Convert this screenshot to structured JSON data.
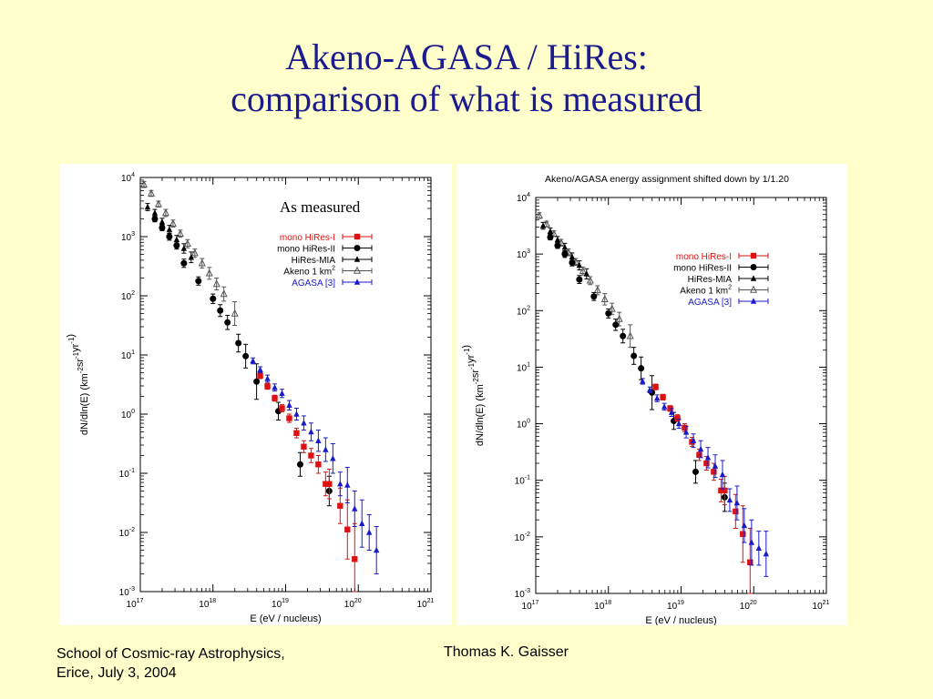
{
  "title": {
    "line1": "Akeno-AGASA / HiRes:",
    "line2": "comparison of what is measured"
  },
  "footer": {
    "school": "School of Cosmic-ray Astrophysics,",
    "date": "Erice, July 3, 2004",
    "author": "Thomas K. Gaisser"
  },
  "colors": {
    "background": "#ffffcc",
    "title": "#1b1b8f",
    "hires1": "#dd1111",
    "hires2": "#000000",
    "mia": "#000000",
    "akeno": "#555555",
    "agasa": "#1a1acc"
  },
  "chart_data": [
    {
      "type": "scatter",
      "title": "",
      "annotation": "As measured",
      "xlabel": "E   (eV / nucleus)",
      "ylabel": "dN/dln(E)   (km-2sr-1yr-1)",
      "xscale": "log",
      "yscale": "log",
      "xlim": [
        1e+17,
        1e+21
      ],
      "ylim": [
        0.001,
        10000.0
      ],
      "xticks": [
        "10^17",
        "10^18",
        "10^19",
        "10^20",
        "10^21"
      ],
      "yticks": [
        "10^-3",
        "10^-2",
        "10^-1",
        "10^0",
        "10^1",
        "10^2",
        "10^3",
        "10^4"
      ],
      "legend": {
        "placement": "top-right",
        "entries": [
          {
            "label": "mono HiRes-I",
            "sup": "",
            "series": "hires1"
          },
          {
            "label": "mono HiRes-II",
            "sup": "",
            "series": "hires2"
          },
          {
            "label": "HiRes-MIA",
            "sup": "",
            "series": "mia"
          },
          {
            "label": "Akeno 1 km",
            "sup": "2",
            "series": "akeno"
          },
          {
            "label": "AGASA [3]",
            "sup": "",
            "series": "agasa"
          }
        ]
      },
      "series": [
        {
          "key": "akeno",
          "marker": "triangle-open",
          "x": [
            17.05,
            17.15,
            17.25,
            17.35,
            17.45,
            17.55,
            17.65,
            17.75,
            17.85,
            17.95,
            18.05,
            18.15,
            18.3
          ],
          "y": [
            3.88,
            3.73,
            3.55,
            3.4,
            3.22,
            3.05,
            2.88,
            2.72,
            2.55,
            2.38,
            2.2,
            2.03,
            1.7
          ],
          "err": [
            0.05,
            0.05,
            0.05,
            0.06,
            0.06,
            0.06,
            0.07,
            0.07,
            0.08,
            0.1,
            0.1,
            0.12,
            0.2
          ]
        },
        {
          "key": "hires2",
          "marker": "circle",
          "x": [
            17.2,
            17.3,
            17.4,
            17.5,
            17.6,
            17.8,
            18.0,
            18.1,
            18.2,
            18.35,
            18.45,
            18.6,
            18.9,
            19.2,
            19.6
          ],
          "y": [
            3.3,
            3.15,
            3.0,
            2.85,
            2.55,
            2.25,
            1.95,
            1.75,
            1.55,
            1.2,
            0.98,
            0.55,
            0.05,
            -0.85,
            -1.3
          ],
          "err": [
            0.05,
            0.05,
            0.06,
            0.06,
            0.07,
            0.07,
            0.08,
            0.1,
            0.12,
            0.15,
            0.2,
            0.3,
            0.15,
            0.2,
            0.25
          ]
        },
        {
          "key": "mia",
          "marker": "triangle",
          "x": [
            17.1,
            17.2,
            17.3,
            17.4,
            17.5,
            17.6,
            17.7
          ],
          "y": [
            3.5,
            3.4,
            3.25,
            3.12,
            2.95,
            2.8,
            2.65
          ],
          "err": [
            0.06,
            0.06,
            0.06,
            0.07,
            0.07,
            0.08,
            0.09
          ]
        },
        {
          "key": "hires1",
          "marker": "square",
          "x": [
            18.65,
            18.75,
            18.85,
            18.95,
            19.05,
            19.15,
            19.25,
            19.35,
            19.45,
            19.55,
            19.6,
            19.75,
            19.85,
            19.95
          ],
          "y": [
            0.65,
            0.47,
            0.27,
            0.1,
            -0.07,
            -0.32,
            -0.55,
            -0.7,
            -0.85,
            -1.18,
            -1.18,
            -1.55,
            -1.95,
            -2.45
          ],
          "err": [
            0.05,
            0.05,
            0.05,
            0.06,
            0.07,
            0.08,
            0.1,
            0.12,
            0.15,
            0.2,
            0.25,
            0.3,
            0.5,
            0.6
          ]
        },
        {
          "key": "agasa",
          "marker": "triangle",
          "x": [
            18.55,
            18.65,
            18.75,
            18.85,
            18.95,
            19.05,
            19.15,
            19.25,
            19.35,
            19.45,
            19.55,
            19.65,
            19.75,
            19.85,
            19.95,
            20.05,
            20.15,
            20.25
          ],
          "y": [
            0.9,
            0.75,
            0.6,
            0.45,
            0.35,
            0.15,
            0.0,
            -0.15,
            -0.3,
            -0.45,
            -0.6,
            -0.75,
            -1.18,
            -1.2,
            -1.6,
            -1.85,
            -2.0,
            -2.3
          ],
          "err": [
            0.05,
            0.05,
            0.06,
            0.06,
            0.07,
            0.08,
            0.1,
            0.12,
            0.15,
            0.18,
            0.2,
            0.25,
            0.2,
            0.3,
            0.3,
            0.4,
            0.3,
            0.4
          ]
        }
      ]
    },
    {
      "type": "scatter",
      "title": "Akeno/AGASA energy assignment shifted down by 1/1.20",
      "annotation": "",
      "xlabel": "E   (eV / nucleus)",
      "ylabel": "dN/dln(E)   (km-2sr-1yr-1)",
      "xscale": "log",
      "yscale": "log",
      "xlim": [
        1e+17,
        1e+21
      ],
      "ylim": [
        0.001,
        10000.0
      ],
      "xticks": [
        "10^17",
        "10^18",
        "10^19",
        "10^20",
        "10^21"
      ],
      "yticks": [
        "10^-3",
        "10^-2",
        "10^-1",
        "10^0",
        "10^1",
        "10^2",
        "10^3",
        "10^4"
      ],
      "legend": {
        "placement": "top-right",
        "entries": [
          {
            "label": "mono HiRes-I",
            "sup": "",
            "series": "hires1"
          },
          {
            "label": "mono HiRes-II",
            "sup": "",
            "series": "hires2"
          },
          {
            "label": "HiRes-MIA",
            "sup": "",
            "series": "mia"
          },
          {
            "label": "Akeno 1 km",
            "sup": "2",
            "series": "akeno"
          },
          {
            "label": "AGASA [3]",
            "sup": "",
            "series": "agasa"
          }
        ]
      },
      "series": [
        {
          "key": "akeno",
          "marker": "triangle-open",
          "x": [
            17.05,
            17.15,
            17.25,
            17.35,
            17.45,
            17.55,
            17.65,
            17.75,
            17.85,
            17.95,
            18.05,
            18.15,
            18.3
          ],
          "y": [
            3.68,
            3.53,
            3.36,
            3.2,
            3.03,
            2.86,
            2.7,
            2.53,
            2.36,
            2.2,
            2.03,
            1.85,
            1.55
          ],
          "err": [
            0.05,
            0.05,
            0.05,
            0.06,
            0.06,
            0.06,
            0.07,
            0.07,
            0.08,
            0.1,
            0.1,
            0.12,
            0.2
          ]
        },
        {
          "key": "hires2",
          "marker": "circle",
          "x": [
            17.2,
            17.3,
            17.4,
            17.5,
            17.6,
            17.8,
            18.0,
            18.1,
            18.2,
            18.35,
            18.45,
            18.6,
            18.9,
            19.2,
            19.6
          ],
          "y": [
            3.3,
            3.15,
            3.0,
            2.85,
            2.55,
            2.25,
            1.95,
            1.75,
            1.55,
            1.2,
            0.98,
            0.55,
            0.05,
            -0.85,
            -1.3
          ],
          "err": [
            0.05,
            0.05,
            0.06,
            0.06,
            0.07,
            0.07,
            0.08,
            0.1,
            0.12,
            0.15,
            0.2,
            0.3,
            0.15,
            0.2,
            0.25
          ]
        },
        {
          "key": "mia",
          "marker": "triangle",
          "x": [
            17.1,
            17.2,
            17.3,
            17.4,
            17.5,
            17.6,
            17.7
          ],
          "y": [
            3.5,
            3.4,
            3.25,
            3.12,
            2.95,
            2.8,
            2.65
          ],
          "err": [
            0.06,
            0.06,
            0.06,
            0.07,
            0.07,
            0.08,
            0.09
          ]
        },
        {
          "key": "hires1",
          "marker": "square",
          "x": [
            18.65,
            18.75,
            18.85,
            18.95,
            19.05,
            19.15,
            19.25,
            19.35,
            19.45,
            19.55,
            19.6,
            19.75,
            19.85,
            19.95
          ],
          "y": [
            0.65,
            0.47,
            0.27,
            0.1,
            -0.07,
            -0.32,
            -0.55,
            -0.7,
            -0.85,
            -1.18,
            -1.18,
            -1.55,
            -1.95,
            -2.45
          ],
          "err": [
            0.05,
            0.05,
            0.05,
            0.06,
            0.07,
            0.08,
            0.1,
            0.12,
            0.15,
            0.2,
            0.25,
            0.3,
            0.5,
            0.6
          ]
        },
        {
          "key": "agasa",
          "marker": "triangle",
          "x": [
            18.47,
            18.57,
            18.67,
            18.77,
            18.87,
            18.97,
            19.07,
            19.17,
            19.27,
            19.37,
            19.47,
            19.57,
            19.67,
            19.77,
            19.87,
            19.97,
            20.07,
            20.17
          ],
          "y": [
            0.75,
            0.6,
            0.45,
            0.3,
            0.2,
            0.0,
            -0.15,
            -0.3,
            -0.45,
            -0.6,
            -0.75,
            -0.9,
            -1.35,
            -1.4,
            -1.8,
            -2.1,
            -2.2,
            -2.3
          ],
          "err": [
            0.05,
            0.05,
            0.06,
            0.06,
            0.07,
            0.08,
            0.1,
            0.12,
            0.15,
            0.18,
            0.2,
            0.25,
            0.2,
            0.3,
            0.3,
            0.4,
            0.3,
            0.4
          ]
        }
      ]
    }
  ]
}
